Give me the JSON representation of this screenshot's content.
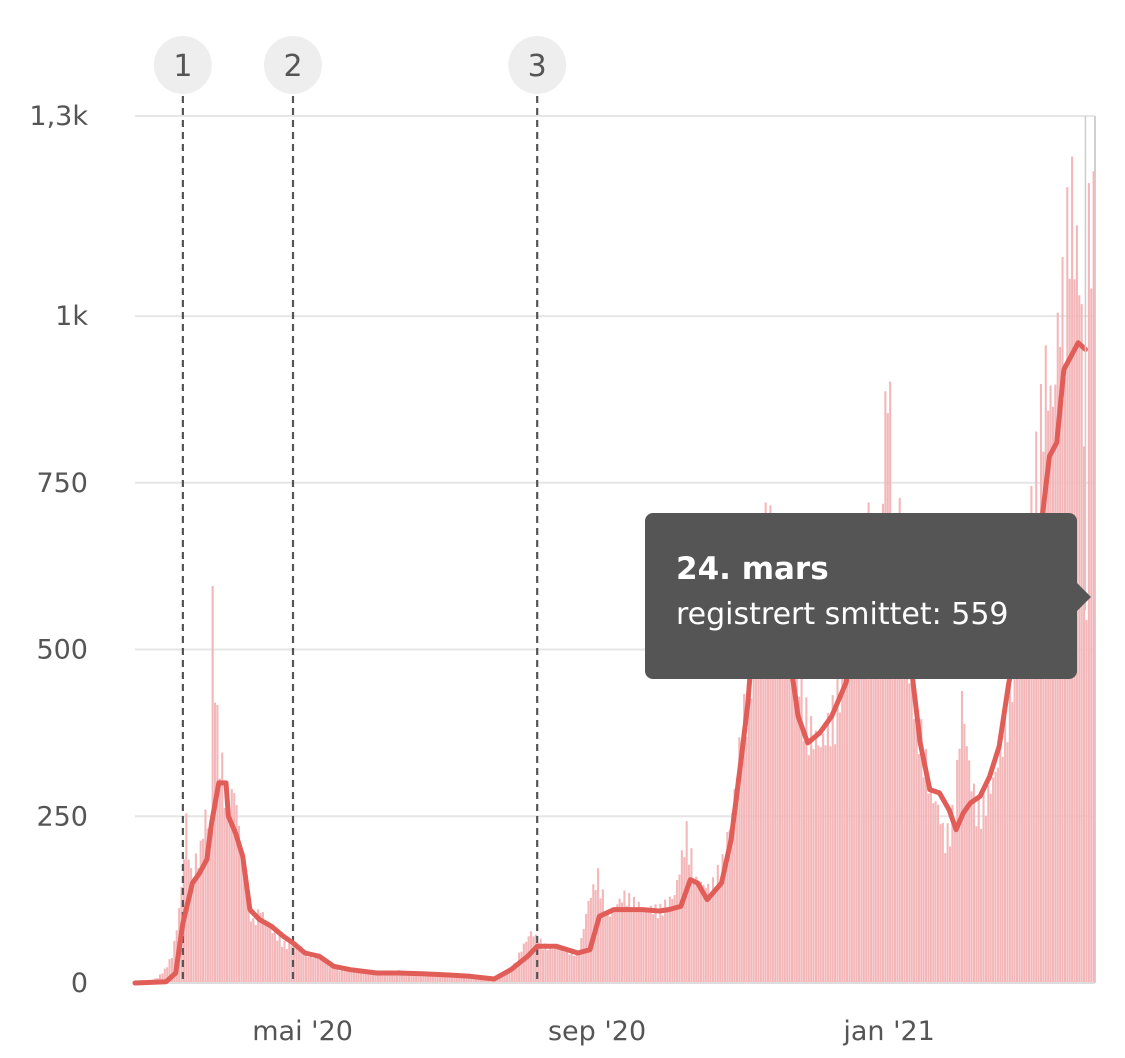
{
  "chart_data": {
    "type": "bar",
    "title": "",
    "xlabel": "",
    "ylabel": "",
    "ylim": [
      0,
      1300
    ],
    "y_ticks": [
      {
        "value": 0,
        "label": "0"
      },
      {
        "value": 250,
        "label": "250"
      },
      {
        "value": 500,
        "label": "500"
      },
      {
        "value": 750,
        "label": "750"
      },
      {
        "value": 1000,
        "label": "1k"
      },
      {
        "value": 1300,
        "label": "1,3k"
      }
    ],
    "x_range": [
      "2020-02-21",
      "2021-03-28"
    ],
    "x_ticks": [
      {
        "date": "2020-05-01",
        "label": "mai '20"
      },
      {
        "date": "2020-09-01",
        "label": "sep '20"
      },
      {
        "date": "2021-01-01",
        "label": "jan '21"
      }
    ],
    "grid": "horizontal",
    "colors": {
      "bars": "#f4b7b9",
      "line": "#e05d58",
      "grid": "#e6e6e6",
      "marker": "#555555",
      "tooltip_bg": "#555555"
    },
    "markers": [
      {
        "label": "1",
        "date": "2020-03-12"
      },
      {
        "label": "2",
        "date": "2020-04-27"
      },
      {
        "label": "3",
        "date": "2020-08-07"
      }
    ],
    "series": [
      {
        "type": "bar",
        "values": [
          [
            "2020-02-21",
            0
          ],
          [
            "2020-02-26",
            2
          ],
          [
            "2020-03-01",
            8
          ],
          [
            "2020-03-04",
            20
          ],
          [
            "2020-03-07",
            40
          ],
          [
            "2020-03-09",
            80
          ],
          [
            "2020-03-11",
            140
          ],
          [
            "2020-03-13",
            240
          ],
          [
            "2020-03-15",
            160
          ],
          [
            "2020-03-17",
            180
          ],
          [
            "2020-03-19",
            200
          ],
          [
            "2020-03-21",
            250
          ],
          [
            "2020-03-23",
            210
          ],
          [
            "2020-03-24",
            570
          ],
          [
            "2020-03-25",
            440
          ],
          [
            "2020-03-27",
            340
          ],
          [
            "2020-03-29",
            300
          ],
          [
            "2020-03-31",
            260
          ],
          [
            "2020-04-02",
            290
          ],
          [
            "2020-04-04",
            230
          ],
          [
            "2020-04-06",
            170
          ],
          [
            "2020-04-08",
            120
          ],
          [
            "2020-04-10",
            90
          ],
          [
            "2020-04-13",
            110
          ],
          [
            "2020-04-16",
            85
          ],
          [
            "2020-04-20",
            70
          ],
          [
            "2020-04-24",
            55
          ],
          [
            "2020-04-28",
            60
          ],
          [
            "2020-05-02",
            45
          ],
          [
            "2020-05-07",
            40
          ],
          [
            "2020-05-12",
            25
          ],
          [
            "2020-05-17",
            20
          ],
          [
            "2020-05-22",
            18
          ],
          [
            "2020-06-01",
            15
          ],
          [
            "2020-06-10",
            18
          ],
          [
            "2020-06-20",
            15
          ],
          [
            "2020-07-01",
            14
          ],
          [
            "2020-07-10",
            10
          ],
          [
            "2020-07-20",
            8
          ],
          [
            "2020-07-27",
            20
          ],
          [
            "2020-07-31",
            50
          ],
          [
            "2020-08-04",
            75
          ],
          [
            "2020-08-10",
            55
          ],
          [
            "2020-08-17",
            50
          ],
          [
            "2020-08-24",
            45
          ],
          [
            "2020-08-28",
            120
          ],
          [
            "2020-09-01",
            160
          ],
          [
            "2020-09-05",
            100
          ],
          [
            "2020-09-12",
            130
          ],
          [
            "2020-09-20",
            110
          ],
          [
            "2020-09-27",
            110
          ],
          [
            "2020-10-03",
            130
          ],
          [
            "2020-10-08",
            225
          ],
          [
            "2020-10-12",
            150
          ],
          [
            "2020-10-18",
            140
          ],
          [
            "2020-10-23",
            180
          ],
          [
            "2020-10-27",
            250
          ],
          [
            "2020-10-31",
            380
          ],
          [
            "2020-11-04",
            470
          ],
          [
            "2020-11-07",
            660
          ],
          [
            "2020-11-11",
            700
          ],
          [
            "2020-11-14",
            610
          ],
          [
            "2020-11-17",
            600
          ],
          [
            "2020-11-21",
            550
          ],
          [
            "2020-11-25",
            430
          ],
          [
            "2020-11-28",
            380
          ],
          [
            "2020-12-03",
            350
          ],
          [
            "2020-12-08",
            400
          ],
          [
            "2020-12-14",
            480
          ],
          [
            "2020-12-19",
            600
          ],
          [
            "2020-12-24",
            690
          ],
          [
            "2020-12-27",
            550
          ],
          [
            "2020-12-31",
            930
          ],
          [
            "2021-01-03",
            650
          ],
          [
            "2021-01-06",
            700
          ],
          [
            "2021-01-09",
            450
          ],
          [
            "2021-01-12",
            400
          ],
          [
            "2021-01-15",
            350
          ],
          [
            "2021-01-18",
            280
          ],
          [
            "2021-01-21",
            260
          ],
          [
            "2021-01-24",
            210
          ],
          [
            "2021-01-28",
            260
          ],
          [
            "2021-01-31",
            420
          ],
          [
            "2021-02-03",
            320
          ],
          [
            "2021-02-06",
            260
          ],
          [
            "2021-02-10",
            270
          ],
          [
            "2021-02-14",
            310
          ],
          [
            "2021-02-18",
            380
          ],
          [
            "2021-02-22",
            500
          ],
          [
            "2021-02-26",
            640
          ],
          [
            "2021-03-01",
            700
          ],
          [
            "2021-03-04",
            800
          ],
          [
            "2021-03-07",
            900
          ],
          [
            "2021-03-10",
            850
          ],
          [
            "2021-03-13",
            1010
          ],
          [
            "2021-03-15",
            1020
          ],
          [
            "2021-03-17",
            1190
          ],
          [
            "2021-03-19",
            1120
          ],
          [
            "2021-03-21",
            1040
          ],
          [
            "2021-03-22",
            1000
          ],
          [
            "2021-03-24",
            559
          ],
          [
            "2021-03-25",
            1130
          ],
          [
            "2021-03-27",
            1130
          ]
        ]
      },
      {
        "type": "line",
        "values": [
          [
            "2020-02-21",
            0
          ],
          [
            "2020-03-05",
            2
          ],
          [
            "2020-03-09",
            15
          ],
          [
            "2020-03-12",
            90
          ],
          [
            "2020-03-16",
            150
          ],
          [
            "2020-03-19",
            165
          ],
          [
            "2020-03-22",
            185
          ],
          [
            "2020-03-24",
            240
          ],
          [
            "2020-03-27",
            300
          ],
          [
            "2020-03-30",
            300
          ],
          [
            "2020-03-31",
            250
          ],
          [
            "2020-04-03",
            225
          ],
          [
            "2020-04-06",
            190
          ],
          [
            "2020-04-09",
            110
          ],
          [
            "2020-04-13",
            95
          ],
          [
            "2020-04-18",
            85
          ],
          [
            "2020-04-23",
            70
          ],
          [
            "2020-04-27",
            60
          ],
          [
            "2020-05-02",
            45
          ],
          [
            "2020-05-08",
            40
          ],
          [
            "2020-05-14",
            25
          ],
          [
            "2020-05-21",
            20
          ],
          [
            "2020-06-01",
            15
          ],
          [
            "2020-06-10",
            15
          ],
          [
            "2020-06-20",
            14
          ],
          [
            "2020-07-01",
            12
          ],
          [
            "2020-07-10",
            10
          ],
          [
            "2020-07-20",
            6
          ],
          [
            "2020-07-27",
            20
          ],
          [
            "2020-08-03",
            40
          ],
          [
            "2020-08-07",
            55
          ],
          [
            "2020-08-15",
            55
          ],
          [
            "2020-08-24",
            45
          ],
          [
            "2020-08-29",
            50
          ],
          [
            "2020-09-02",
            100
          ],
          [
            "2020-09-08",
            110
          ],
          [
            "2020-09-20",
            110
          ],
          [
            "2020-09-27",
            108
          ],
          [
            "2020-10-01",
            110
          ],
          [
            "2020-10-06",
            115
          ],
          [
            "2020-10-10",
            155
          ],
          [
            "2020-10-13",
            150
          ],
          [
            "2020-10-17",
            125
          ],
          [
            "2020-10-23",
            150
          ],
          [
            "2020-10-27",
            215
          ],
          [
            "2020-10-31",
            330
          ],
          [
            "2020-11-03",
            420
          ],
          [
            "2020-11-06",
            560
          ],
          [
            "2020-11-09",
            600
          ],
          [
            "2020-11-12",
            560
          ],
          [
            "2020-11-16",
            540
          ],
          [
            "2020-11-20",
            500
          ],
          [
            "2020-11-24",
            400
          ],
          [
            "2020-11-28",
            360
          ],
          [
            "2020-12-03",
            375
          ],
          [
            "2020-12-08",
            400
          ],
          [
            "2020-12-14",
            450
          ],
          [
            "2020-12-20",
            580
          ],
          [
            "2020-12-26",
            600
          ],
          [
            "2020-12-31",
            650
          ],
          [
            "2021-01-05",
            680
          ],
          [
            "2021-01-08",
            580
          ],
          [
            "2021-01-11",
            450
          ],
          [
            "2021-01-14",
            360
          ],
          [
            "2021-01-18",
            290
          ],
          [
            "2021-01-22",
            285
          ],
          [
            "2021-01-26",
            260
          ],
          [
            "2021-01-29",
            230
          ],
          [
            "2021-02-01",
            255
          ],
          [
            "2021-02-04",
            270
          ],
          [
            "2021-02-08",
            280
          ],
          [
            "2021-02-12",
            310
          ],
          [
            "2021-02-16",
            355
          ],
          [
            "2021-02-20",
            450
          ],
          [
            "2021-02-24",
            520
          ],
          [
            "2021-02-28",
            600
          ],
          [
            "2021-03-03",
            650
          ],
          [
            "2021-03-06",
            700
          ],
          [
            "2021-03-09",
            790
          ],
          [
            "2021-03-12",
            810
          ],
          [
            "2021-03-15",
            920
          ],
          [
            "2021-03-18",
            940
          ],
          [
            "2021-03-21",
            960
          ],
          [
            "2021-03-24",
            950
          ]
        ]
      }
    ],
    "tooltip": {
      "title": "24. mars",
      "line": "registrert smittet: 559",
      "date": "2021-03-24",
      "value": 559
    }
  }
}
